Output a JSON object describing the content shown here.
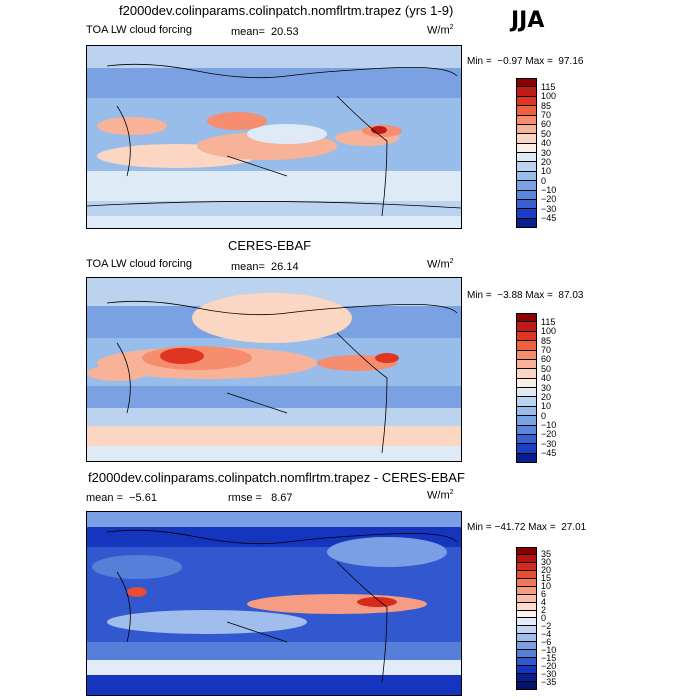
{
  "season": "JJA",
  "panels": [
    {
      "title": "f2000dev.colinparams.colinpatch.nomflrtm.trapez (yrs 1-9)",
      "variable": "TOA LW cloud forcing",
      "stat1": "mean=  20.53",
      "stat2": "",
      "units": "W/m",
      "units_exp": "2",
      "minmax": "Min =  −0.97 Max =  97.16",
      "levels": [
        "115",
        "100",
        "85",
        "70",
        "60",
        "50",
        "40",
        "30",
        "20",
        "10",
        "0",
        "−10",
        "−20",
        "−30",
        "−45"
      ],
      "colors": [
        "#8b0000",
        "#c11b17",
        "#e03520",
        "#ef6040",
        "#f58d6e",
        "#f8b297",
        "#fbd6c2",
        "#fbeee3",
        "#deebf7",
        "#bcd3f0",
        "#99bdea",
        "#7aa2e3",
        "#5a86db",
        "#3a5fd2",
        "#1a3fc4",
        "#0a1f8f"
      ]
    },
    {
      "title": "CERES-EBAF",
      "variable": "TOA LW cloud forcing",
      "stat1": "mean=  26.14",
      "stat2": "",
      "units": "W/m",
      "units_exp": "2",
      "minmax": "Min =  −3.88 Max =  87.03",
      "levels": [
        "115",
        "100",
        "85",
        "70",
        "60",
        "50",
        "40",
        "30",
        "20",
        "10",
        "0",
        "−10",
        "−20",
        "−30",
        "−45"
      ],
      "colors": [
        "#8b0000",
        "#c11b17",
        "#e03520",
        "#ef6040",
        "#f58d6e",
        "#f8b297",
        "#fbd6c2",
        "#fbeee3",
        "#deebf7",
        "#bcd3f0",
        "#99bdea",
        "#7aa2e3",
        "#5a86db",
        "#3a5fd2",
        "#1a3fc4",
        "#0a1f8f"
      ]
    },
    {
      "title": "f2000dev.colinparams.colinpatch.nomflrtm.trapez - CERES-EBAF",
      "variable": "",
      "stat1": "mean =  −5.61",
      "stat2": "rmse =   8.67",
      "units": "W/m",
      "units_exp": "2",
      "minmax": "Min = −41.72 Max =  27.01",
      "levels": [
        "35",
        "30",
        "20",
        "15",
        "10",
        "6",
        "4",
        "2",
        "0",
        "−2",
        "−4",
        "−6",
        "−10",
        "−15",
        "−20",
        "−30",
        "−35"
      ],
      "colors": [
        "#8b0000",
        "#b3140f",
        "#d62a1c",
        "#e84e33",
        "#f2765a",
        "#f69c82",
        "#f9bea8",
        "#fcdccd",
        "#fdf1ea",
        "#e2ecf9",
        "#c3d6f3",
        "#a0bdec",
        "#7b9fe4",
        "#567fda",
        "#3158cf",
        "#1535bf",
        "#0a1f8f",
        "#06136b"
      ]
    }
  ]
}
